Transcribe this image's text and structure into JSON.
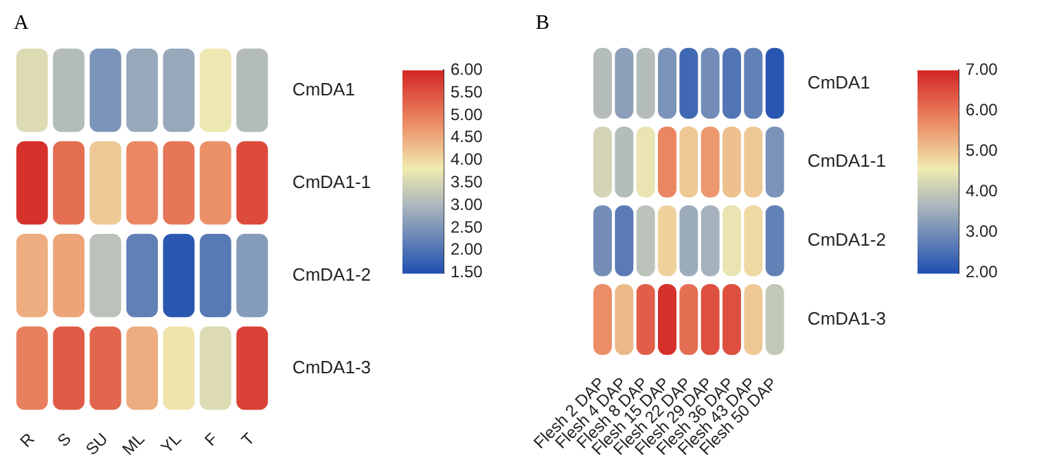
{
  "chart_data": [
    {
      "type": "heatmap",
      "title": "A",
      "categories": [
        "R",
        "S",
        "SU",
        "ML",
        "YL",
        "F",
        "T"
      ],
      "y_categories": [
        "CmDA1",
        "CmDA1-1",
        "CmDA1-2",
        "CmDA1-3"
      ],
      "cells": [
        [
          3.6,
          3.1,
          2.5,
          2.8,
          2.8,
          3.8,
          3.1
        ],
        [
          5.9,
          5.2,
          4.2,
          4.9,
          5.1,
          4.8,
          5.6
        ],
        [
          4.5,
          4.6,
          3.2,
          2.2,
          1.6,
          2.1,
          2.6
        ],
        [
          5.0,
          5.4,
          5.3,
          4.5,
          3.9,
          3.6,
          5.7
        ]
      ],
      "clim": [
        1.5,
        6
      ],
      "cticks": [
        {
          "value": 1.5,
          "label": "1.50"
        },
        {
          "value": 2,
          "label": "2.00"
        },
        {
          "value": 2.5,
          "label": "2.50"
        },
        {
          "value": 3,
          "label": "3.00"
        },
        {
          "value": 3.5,
          "label": "3.50"
        },
        {
          "value": 4,
          "label": "4.00"
        },
        {
          "value": 4.5,
          "label": "4.50"
        },
        {
          "value": 5,
          "label": "5.00"
        },
        {
          "value": 5.5,
          "label": "5.50"
        },
        {
          "value": 6,
          "label": "6.00"
        }
      ]
    },
    {
      "type": "heatmap",
      "title": "B",
      "categories": [
        "Flesh 2 DAP",
        "Flesh 4 DAP",
        "Flesh 8 DAP",
        "Flesh 15 DAP",
        "Flesh 22 DAP",
        "Flesh 29 DAP",
        "Flesh 36 DAP",
        "Flesh 43 DAP",
        "Flesh 50 DAP"
      ],
      "y_categories": [
        "CmDA1",
        "CmDA1-1",
        "CmDA1-2",
        "CmDA1-3"
      ],
      "cells": [
        [
          3.8,
          3.3,
          3.8,
          3.1,
          2.4,
          3.0,
          2.6,
          2.8,
          2.1
        ],
        [
          4.2,
          3.8,
          4.5,
          5.8,
          5.0,
          5.6,
          5.1,
          5.0,
          3.1
        ],
        [
          3.0,
          2.7,
          3.9,
          4.9,
          3.5,
          3.6,
          4.5,
          4.8,
          2.8
        ],
        [
          5.7,
          5.2,
          6.3,
          6.9,
          6.1,
          6.5,
          6.5,
          5.0,
          4.0
        ]
      ],
      "clim": [
        2,
        7
      ],
      "cticks": [
        {
          "value": 2,
          "label": "2.00"
        },
        {
          "value": 3,
          "label": "3.00"
        },
        {
          "value": 4,
          "label": "4.00"
        },
        {
          "value": 5,
          "label": "5.00"
        },
        {
          "value": 6,
          "label": "6.00"
        },
        {
          "value": 7,
          "label": "7.00"
        }
      ]
    }
  ]
}
